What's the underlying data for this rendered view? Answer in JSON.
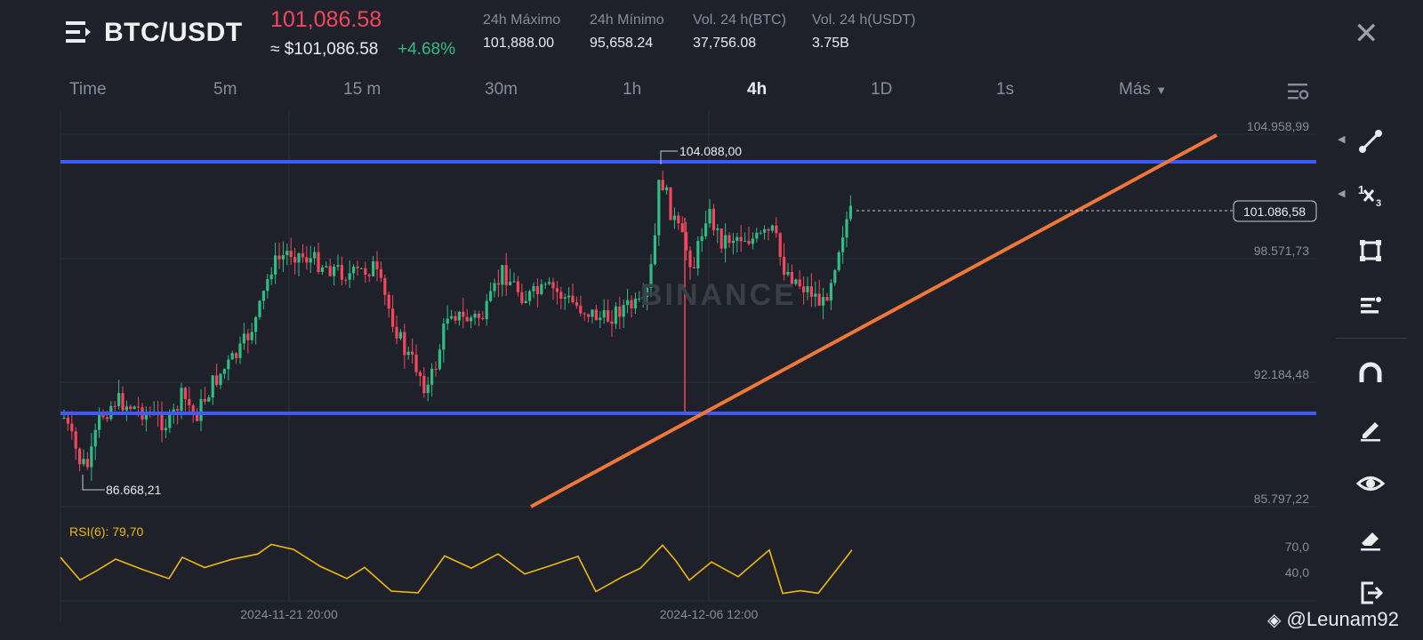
{
  "header": {
    "pair": "BTC/USDT",
    "last_price": "101,086.58",
    "approx_price": "≈ $101,086.58",
    "change_pct": "+4.68%",
    "stats": [
      {
        "label": "24h Máximo",
        "value": "101,888.00"
      },
      {
        "label": "24h Mínimo",
        "value": "95,658.24"
      },
      {
        "label": "Vol. 24 h(BTC)",
        "value": "37,756.08"
      },
      {
        "label": "Vol. 24 h(USDT)",
        "value": "3.75B"
      }
    ]
  },
  "timeframes": {
    "items": [
      "Time",
      "5m",
      "15 m",
      "30m",
      "1h",
      "4h",
      "1D",
      "1s"
    ],
    "more": "Más",
    "active": "4h"
  },
  "chart": {
    "price_axis": [
      "104.958,99",
      "98.571,73",
      "92.184,48",
      "85.797,22"
    ],
    "current_price_label": "101.086,58",
    "high_label": "104.088,00",
    "low_label": "86.668,21",
    "time_axis": [
      "2024-11-21 20:00",
      "2024-12-06 12:00"
    ],
    "watermark": "BINANCE",
    "rsi_label": "RSI(6): 79,70",
    "rsi_axis": [
      "70,0",
      "40,0"
    ],
    "colors": {
      "up": "#2ebd85",
      "down": "#f6465d",
      "hline": "#3d5afe",
      "trend": "#f0773a",
      "rsi": "#f0b90b"
    }
  },
  "toolbar": {
    "icons": [
      "trend-line-icon",
      "fib-icon",
      "rectangle-icon",
      "text-lines-icon",
      "magnet-icon",
      "pen-icon",
      "eye-icon",
      "eraser-icon",
      "exit-icon"
    ]
  },
  "footer": {
    "user": "@Leunam92"
  }
}
